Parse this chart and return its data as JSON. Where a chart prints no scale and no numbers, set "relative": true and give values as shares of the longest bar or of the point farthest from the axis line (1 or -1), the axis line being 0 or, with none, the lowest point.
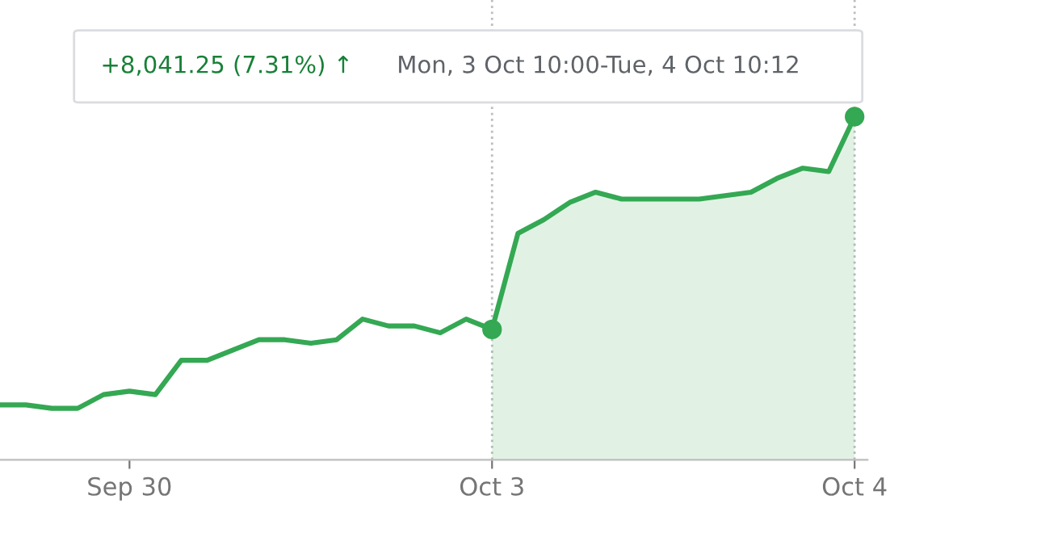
{
  "chart_data": {
    "type": "line",
    "relative": true,
    "categories": [
      null,
      null,
      null,
      null,
      null,
      "Sep 30",
      null,
      null,
      null,
      null,
      null,
      null,
      null,
      null,
      null,
      null,
      null,
      null,
      null,
      "Oct 3",
      null,
      null,
      null,
      null,
      null,
      null,
      null,
      null,
      null,
      null,
      null,
      null,
      null,
      "Oct 4"
    ],
    "series": [
      {
        "color": "#34a853",
        "values": [
          0.16,
          0.16,
          0.15,
          0.15,
          0.19,
          0.2,
          0.19,
          0.29,
          0.29,
          0.32,
          0.35,
          0.35,
          0.34,
          0.35,
          0.41,
          0.39,
          0.39,
          0.37,
          0.41,
          0.38,
          0.66,
          0.7,
          0.75,
          0.78,
          0.76,
          0.76,
          0.76,
          0.76,
          0.77,
          0.78,
          0.82,
          0.85,
          0.84,
          1
        ]
      },
      {
        "type": "area",
        "color": "#34a853",
        "values": [
          null,
          null,
          null,
          null,
          null,
          null,
          null,
          null,
          null,
          null,
          null,
          null,
          null,
          null,
          null,
          null,
          null,
          null,
          null,
          0.38,
          0.66,
          0.7,
          0.75,
          0.78,
          0.76,
          0.76,
          0.76,
          0.76,
          0.77,
          0.78,
          0.82,
          0.85,
          0.84,
          1
        ]
      },
      {
        "type": "scatter",
        "color": "#34a853",
        "marker": "circle",
        "values": [
          null,
          null,
          null,
          null,
          null,
          null,
          null,
          null,
          null,
          null,
          null,
          null,
          null,
          null,
          null,
          null,
          null,
          null,
          null,
          0.38,
          null,
          null,
          null,
          null,
          null,
          null,
          null,
          null,
          null,
          null,
          null,
          null,
          null,
          1
        ]
      }
    ],
    "ref_lines": [
      {
        "axis": "x",
        "value": "Oct 3",
        "color": "#bdbdbd",
        "line_style": "dotted"
      },
      {
        "axis": "x",
        "value": "Oct 4",
        "color": "#bdbdbd",
        "line_style": "dotted"
      }
    ],
    "annotations": [
      "+8,041.25 (7.31%) ↑",
      "Mon, 3 Oct 10:00-Tue, 4 Oct 10:12"
    ]
  }
}
